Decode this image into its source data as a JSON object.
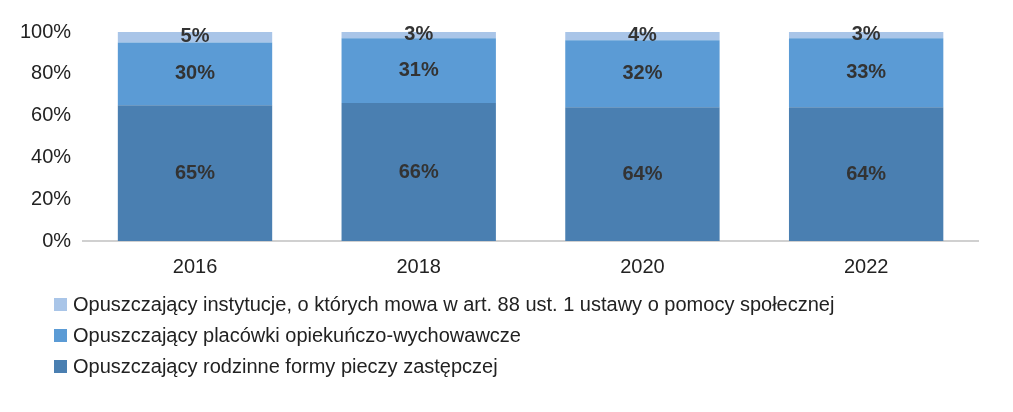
{
  "chart_data": {
    "type": "bar",
    "stacked": true,
    "categories": [
      "2016",
      "2018",
      "2020",
      "2022"
    ],
    "series": [
      {
        "name": "Opuszczający rodzinne formy pieczy zastępczej",
        "color": "#4a7fb1",
        "values": [
          65,
          66,
          64,
          64
        ],
        "value_labels": [
          "65%",
          "66%",
          "64%",
          "64%"
        ]
      },
      {
        "name": "Opuszczający placówki opiekuńczo-wychowawcze",
        "color": "#5b9bd5",
        "values": [
          30,
          31,
          32,
          33
        ],
        "value_labels": [
          "30%",
          "31%",
          "32%",
          "33%"
        ]
      },
      {
        "name": "Opuszczający instytucje, o których mowa w art. 88 ust. 1 ustawy o pomocy społecznej",
        "color": "#a9c5e8",
        "values": [
          5,
          3,
          4,
          3
        ],
        "value_labels": [
          "5%",
          "3%",
          "4%",
          "3%"
        ]
      }
    ],
    "ylim": [
      0,
      100
    ],
    "yticks": [
      {
        "value": 0,
        "label": "0%"
      },
      {
        "value": 20,
        "label": "20%"
      },
      {
        "value": 40,
        "label": "40%"
      },
      {
        "value": 60,
        "label": "60%"
      },
      {
        "value": 80,
        "label": "80%"
      },
      {
        "value": 100,
        "label": "100%"
      }
    ],
    "grid": false,
    "legend": "bottom"
  }
}
